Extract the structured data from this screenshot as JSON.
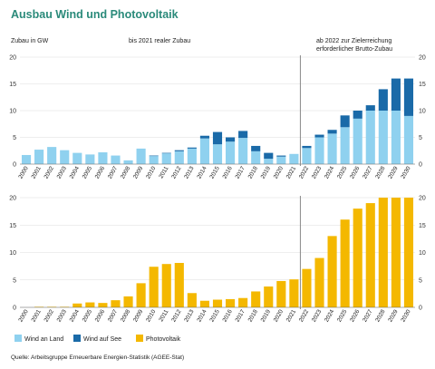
{
  "title": "Ausbau Wind und Photovoltaik",
  "unit_label": "Zubau in GW",
  "annotations": {
    "historic": "bis 2021 realer Zubau",
    "target_line1": "ab 2022 zur Zielerreichung",
    "target_line2": "erforderlicher Brutto-Zubau"
  },
  "source": "Quelle: Arbeitsgruppe Erneuerbare Energien-Statistik (AGEE-Stat)",
  "colors": {
    "wind_land": "#8fd1ef",
    "wind_see": "#1a6aa8",
    "photovoltaik": "#f4b800",
    "title": "#2a8a7a",
    "divider": "#888888",
    "grid": "#dddddd"
  },
  "chart_data": [
    {
      "type": "bar",
      "stacked": true,
      "categories": [
        "2000",
        "2001",
        "2002",
        "2003",
        "2004",
        "2005",
        "2006",
        "2007",
        "2008",
        "2009",
        "2010",
        "2011",
        "2012",
        "2013",
        "2014",
        "2015",
        "2016",
        "2017",
        "2018",
        "2019",
        "2020",
        "2021",
        "2022",
        "2023",
        "2024",
        "2025",
        "2026",
        "2027",
        "2028",
        "2029",
        "2030"
      ],
      "series": [
        {
          "name": "Wind an Land",
          "color": "#8fd1ef",
          "values": [
            1.7,
            2.7,
            3.2,
            2.6,
            2.1,
            1.8,
            2.2,
            1.6,
            0.7,
            2.9,
            1.5,
            2.0,
            2.4,
            2.9,
            4.8,
            3.7,
            4.2,
            4.9,
            2.4,
            1.0,
            1.4,
            1.9,
            3.0,
            5.0,
            5.7,
            6.9,
            8.5,
            10,
            10,
            10,
            9
          ]
        },
        {
          "name": "Wind auf See",
          "color": "#1a6aa8",
          "values": [
            0,
            0,
            0,
            0,
            0,
            0,
            0,
            0,
            0,
            0,
            0.1,
            0.1,
            0.2,
            0.2,
            0.5,
            2.3,
            0.8,
            1.3,
            1.0,
            1.1,
            0.2,
            0,
            0.4,
            0.5,
            0.7,
            2.2,
            1.5,
            1.0,
            4.0,
            6.0,
            7.0
          ]
        }
      ],
      "ylim": [
        0,
        20
      ],
      "yticks": [
        0,
        5,
        10,
        15,
        20
      ],
      "divider_after": "2021"
    },
    {
      "type": "bar",
      "categories": [
        "2000",
        "2001",
        "2002",
        "2003",
        "2004",
        "2005",
        "2006",
        "2007",
        "2008",
        "2009",
        "2010",
        "2011",
        "2012",
        "2013",
        "2014",
        "2015",
        "2016",
        "2017",
        "2018",
        "2019",
        "2020",
        "2021",
        "2022",
        "2023",
        "2024",
        "2025",
        "2026",
        "2027",
        "2028",
        "2029",
        "2030"
      ],
      "series": [
        {
          "name": "Photovoltaik",
          "color": "#f4b800",
          "values": [
            0,
            0.1,
            0.1,
            0.1,
            0.7,
            0.9,
            0.8,
            1.3,
            2.0,
            4.4,
            7.4,
            7.9,
            8.1,
            2.6,
            1.2,
            1.4,
            1.5,
            1.7,
            2.9,
            3.8,
            4.8,
            5.1,
            7.0,
            9.0,
            13.0,
            16.0,
            18.0,
            19.0,
            20.0,
            20.0,
            20.0
          ]
        }
      ],
      "ylim": [
        0,
        20
      ],
      "yticks": [
        0,
        5,
        10,
        15,
        20
      ],
      "divider_after": "2021"
    }
  ],
  "legend": [
    {
      "label": "Wind an Land",
      "color": "#8fd1ef"
    },
    {
      "label": "Wind auf See",
      "color": "#1a6aa8"
    },
    {
      "label": "Photovoltaik",
      "color": "#f4b800"
    }
  ]
}
